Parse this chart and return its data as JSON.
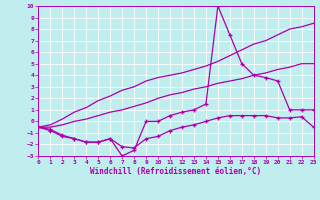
{
  "xlabel": "Windchill (Refroidissement éolien,°C)",
  "xlim": [
    0,
    23
  ],
  "ylim": [
    -3,
    10
  ],
  "xticks": [
    0,
    1,
    2,
    3,
    4,
    5,
    6,
    7,
    8,
    9,
    10,
    11,
    12,
    13,
    14,
    15,
    16,
    17,
    18,
    19,
    20,
    21,
    22,
    23
  ],
  "yticks": [
    -3,
    -2,
    -1,
    0,
    1,
    2,
    3,
    4,
    5,
    6,
    7,
    8,
    9,
    10
  ],
  "line_color": "#aa00aa",
  "bg_color": "#c0eeee",
  "grid_color": "#aadddd",
  "line_spike_x": [
    0,
    1,
    2,
    3,
    4,
    5,
    6,
    7,
    8,
    9,
    10,
    11,
    12,
    13,
    14,
    15,
    16,
    17,
    18,
    19,
    20,
    21,
    22,
    23
  ],
  "line_spike_y": [
    -0.5,
    -0.7,
    -1.2,
    -1.5,
    -1.8,
    -1.8,
    -1.5,
    -3.0,
    -2.5,
    0.0,
    0.0,
    0.5,
    0.8,
    1.0,
    1.5,
    10.0,
    7.5,
    5.0,
    4.0,
    3.8,
    3.5,
    1.0,
    1.0,
    1.0
  ],
  "line_upper_x": [
    0,
    1,
    2,
    3,
    4,
    5,
    6,
    7,
    8,
    9,
    10,
    11,
    12,
    13,
    14,
    15,
    16,
    17,
    18,
    19,
    20,
    21,
    22,
    23
  ],
  "line_upper_y": [
    -0.5,
    -0.3,
    0.2,
    0.8,
    1.2,
    1.8,
    2.2,
    2.7,
    3.0,
    3.5,
    3.8,
    4.0,
    4.2,
    4.5,
    4.8,
    5.2,
    5.7,
    6.2,
    6.7,
    7.0,
    7.5,
    8.0,
    8.2,
    8.5
  ],
  "line_mid_x": [
    0,
    1,
    2,
    3,
    4,
    5,
    6,
    7,
    8,
    9,
    10,
    11,
    12,
    13,
    14,
    15,
    16,
    17,
    18,
    19,
    20,
    21,
    22,
    23
  ],
  "line_mid_y": [
    -0.5,
    -0.5,
    -0.3,
    0.0,
    0.2,
    0.5,
    0.8,
    1.0,
    1.3,
    1.6,
    2.0,
    2.3,
    2.5,
    2.8,
    3.0,
    3.3,
    3.5,
    3.7,
    4.0,
    4.2,
    4.5,
    4.7,
    5.0,
    5.0
  ],
  "line_low_x": [
    0,
    1,
    2,
    3,
    4,
    5,
    6,
    7,
    8,
    9,
    10,
    11,
    12,
    13,
    14,
    15,
    16,
    17,
    18,
    19,
    20,
    21,
    22,
    23
  ],
  "line_low_y": [
    -0.5,
    -0.8,
    -1.3,
    -1.5,
    -1.8,
    -1.8,
    -1.5,
    -2.2,
    -2.3,
    -1.5,
    -1.3,
    -0.8,
    -0.5,
    -0.3,
    0.0,
    0.3,
    0.5,
    0.5,
    0.5,
    0.5,
    0.3,
    0.3,
    0.4,
    -0.5
  ]
}
